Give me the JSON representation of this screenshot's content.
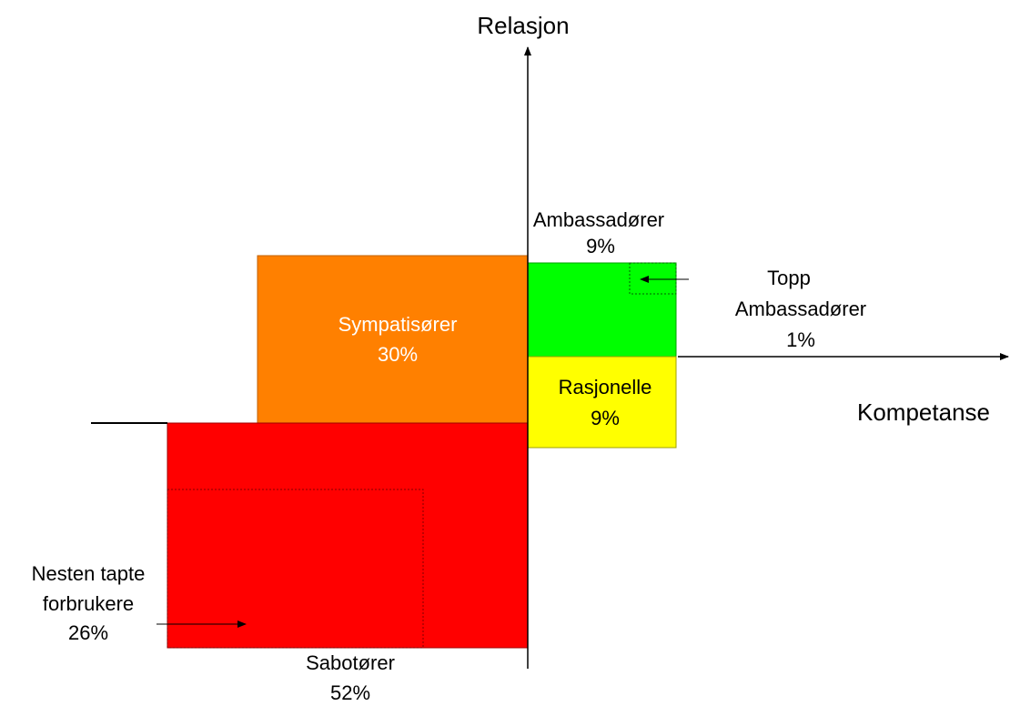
{
  "axes": {
    "y_label": "Relasjon",
    "x_label": "Kompetanse"
  },
  "segments": {
    "ambassadorer": {
      "name": "Ambassadører",
      "share": "9%"
    },
    "topp": {
      "name": [
        "Topp",
        "Ambassadører"
      ],
      "share": "1%"
    },
    "sympatisorer": {
      "name": "Sympatisører",
      "share": "30%"
    },
    "rasjonelle": {
      "name": "Rasjonelle",
      "share": "9%"
    },
    "nesten": {
      "name": [
        "Nesten tapte",
        "forbrukere"
      ],
      "share": "26%"
    },
    "sabotorer": {
      "name": "Sabotører",
      "share": "52%"
    }
  }
}
